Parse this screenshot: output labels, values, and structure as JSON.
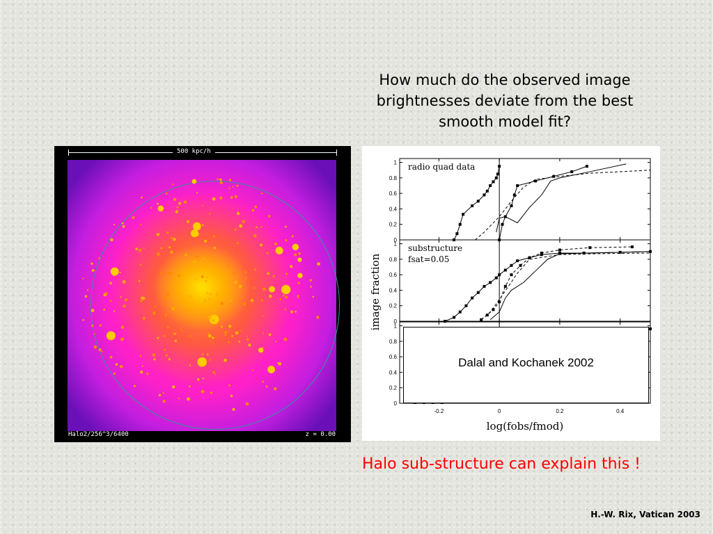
{
  "slide": {
    "question": "How much do the observed image brightnesses deviate from the best smooth model fit?",
    "claim": "Halo sub-structure can explain this !",
    "author": "H.-W. Rix, Vatican 2003"
  },
  "simulation": {
    "scale_label": "500 kpc/h",
    "run_label": "Halo2/256^3/6400",
    "redshift_label": "z = 0.00"
  },
  "chart_data": {
    "type": "line",
    "ylabel": "image fraction",
    "xlabel": "log(fobs/fmod)",
    "xlim": [
      -0.33,
      0.5
    ],
    "x_ticks": [
      -0.2,
      0,
      0.2,
      0.4
    ],
    "x_tick_labels": [
      "-0.2",
      "0",
      "0.2",
      "0.4"
    ],
    "y_ticks": [
      0,
      0.2,
      0.4,
      0.6,
      0.8,
      1
    ],
    "y_tick_labels": [
      "0",
      "0.2",
      "0.4",
      "0.6",
      "0.8",
      "1"
    ],
    "ylim": [
      0,
      1.05
    ],
    "vertical_line_x": 0,
    "annotation": "Dalal and Kochanek 2002",
    "panels": [
      {
        "label": "radio quad data",
        "series": [
          {
            "style": "solid-markers",
            "x": [
              -0.15,
              -0.14,
              -0.13,
              -0.12,
              -0.09,
              -0.07,
              -0.05,
              -0.04,
              -0.03,
              -0.02,
              -0.01,
              -0.005,
              0.0
            ],
            "y": [
              0.0,
              0.08,
              0.2,
              0.33,
              0.44,
              0.5,
              0.58,
              0.63,
              0.7,
              0.75,
              0.8,
              0.85,
              0.95
            ]
          },
          {
            "style": "solid-markers",
            "x": [
              0.0,
              0.01,
              0.02,
              0.04,
              0.05,
              0.06,
              0.12,
              0.18,
              0.24,
              0.29
            ],
            "y": [
              0.0,
              0.2,
              0.3,
              0.44,
              0.58,
              0.7,
              0.76,
              0.82,
              0.88,
              0.95
            ]
          },
          {
            "style": "solid",
            "x": [
              -0.01,
              0.0,
              0.02,
              0.06,
              0.1,
              0.14,
              0.17,
              0.2,
              0.3,
              0.42
            ],
            "y": [
              0.1,
              0.28,
              0.3,
              0.22,
              0.42,
              0.58,
              0.76,
              0.8,
              0.88,
              0.98
            ]
          },
          {
            "style": "dashed",
            "x": [
              -0.08,
              -0.05,
              0.0,
              0.04,
              0.08,
              0.12,
              0.2,
              0.3,
              0.4,
              0.5
            ],
            "y": [
              0.0,
              0.1,
              0.3,
              0.5,
              0.68,
              0.78,
              0.82,
              0.86,
              0.88,
              0.9
            ]
          }
        ]
      },
      {
        "label": "substructure",
        "label2": "fsat=0.05",
        "series": [
          {
            "style": "solid-markers",
            "x": [
              -0.18,
              -0.15,
              -0.13,
              -0.11,
              -0.09,
              -0.07,
              -0.05,
              -0.03,
              -0.01,
              0.0,
              0.02,
              0.04,
              0.06,
              0.1,
              0.14,
              0.2,
              0.28,
              0.4,
              0.5
            ],
            "y": [
              0.0,
              0.05,
              0.12,
              0.2,
              0.3,
              0.37,
              0.45,
              0.5,
              0.56,
              0.6,
              0.66,
              0.72,
              0.78,
              0.82,
              0.86,
              0.88,
              0.88,
              0.89,
              0.9
            ]
          },
          {
            "style": "dashed-markers",
            "x": [
              -0.06,
              -0.04,
              -0.02,
              0.0,
              0.02,
              0.04,
              0.07,
              0.1,
              0.14,
              0.2,
              0.3,
              0.44
            ],
            "y": [
              0.02,
              0.08,
              0.15,
              0.25,
              0.45,
              0.6,
              0.72,
              0.82,
              0.88,
              0.92,
              0.95,
              0.96
            ]
          },
          {
            "style": "solid",
            "x": [
              -0.03,
              0.0,
              0.02,
              0.04,
              0.08,
              0.12,
              0.16,
              0.2,
              0.3,
              0.5
            ],
            "y": [
              0.02,
              0.12,
              0.3,
              0.4,
              0.5,
              0.65,
              0.8,
              0.87,
              0.88,
              0.9
            ]
          },
          {
            "style": "dashed",
            "x": [
              -0.06,
              -0.03,
              0.0,
              0.03,
              0.06,
              0.1,
              0.2,
              0.3,
              0.5
            ],
            "y": [
              0.02,
              0.12,
              0.28,
              0.45,
              0.62,
              0.8,
              0.86,
              0.87,
              0.88
            ]
          }
        ]
      },
      {
        "label": "",
        "series": [
          {
            "style": "solid-markers",
            "x": [
              -0.28,
              -0.25,
              -0.22,
              -0.19,
              -0.16,
              -0.13,
              -0.1,
              -0.1
            ],
            "y": [
              0.01,
              0.01,
              0.01,
              0.01,
              0.02,
              0.02,
              0.03,
              0.03
            ]
          },
          {
            "style": "solid-markers",
            "x": [
              0.5
            ],
            "y": [
              0.96
            ]
          }
        ]
      }
    ]
  }
}
